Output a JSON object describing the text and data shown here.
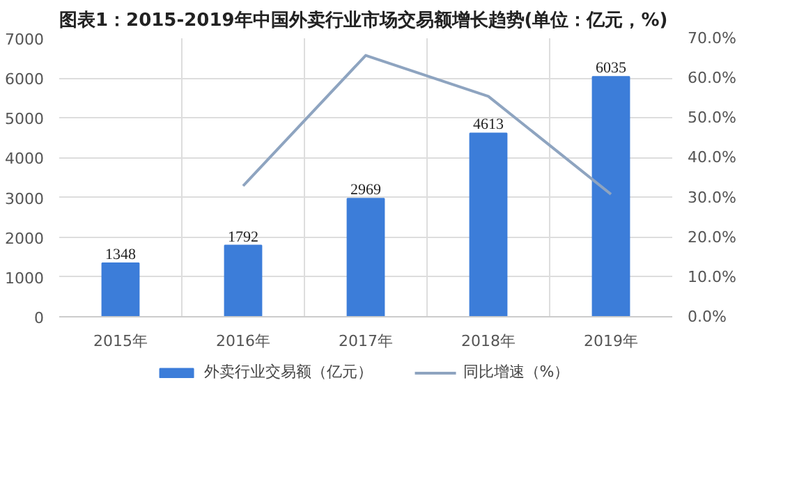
{
  "chart_data": {
    "type": "bar",
    "title": "图表1：2015-2019年中国外卖行业市场交易额增长趋势(单位：亿元，%)",
    "categories": [
      "2015年",
      "2016年",
      "2017年",
      "2018年",
      "2019年"
    ],
    "series": [
      {
        "name": "外卖行业交易额（亿元）",
        "color": "#3c7dd9",
        "values": [
          1348,
          1792,
          2969,
          4613,
          6035
        ],
        "value_labels": [
          "1348",
          "1792",
          "2969",
          "4613",
          "6035"
        ]
      },
      {
        "name": "同比增速（%）",
        "type": "line",
        "axis": "y2",
        "color": "#8ea4c0",
        "values": [
          null,
          32.9,
          65.7,
          55.4,
          30.8
        ]
      }
    ],
    "ylim": [
      0,
      7000
    ],
    "yticks": [
      0,
      1000,
      2000,
      3000,
      4000,
      5000,
      6000,
      7000
    ],
    "y2lim": [
      0,
      70
    ],
    "y2ticks": [
      {
        "value": 0,
        "label": "0.0%"
      },
      {
        "value": 10,
        "label": "10.0%"
      },
      {
        "value": 20,
        "label": "20.0%"
      },
      {
        "value": 30,
        "label": "30.0%"
      },
      {
        "value": 40,
        "label": "40.0%"
      },
      {
        "value": 50,
        "label": "50.0%"
      },
      {
        "value": 60,
        "label": "60.0%"
      },
      {
        "value": 70,
        "label": "70.0%"
      }
    ],
    "grid": true,
    "legend": "bottom",
    "line_style": "solid",
    "marker": "none"
  }
}
